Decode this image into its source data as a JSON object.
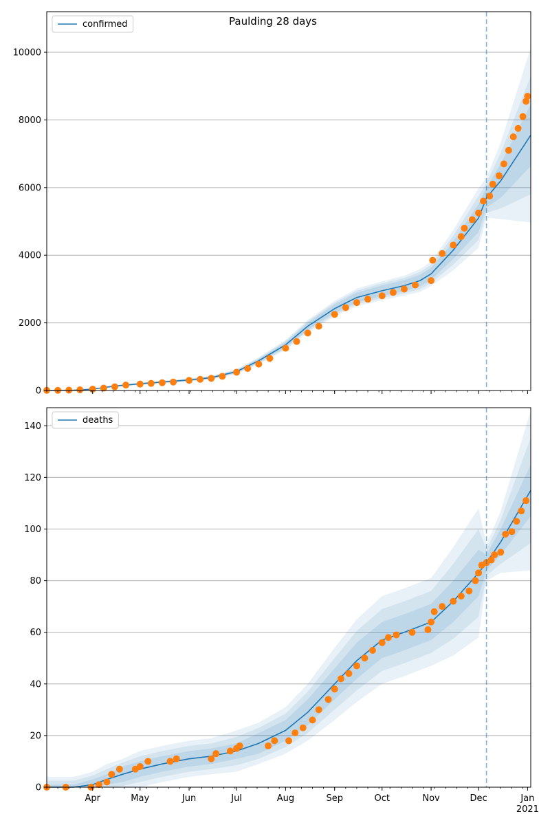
{
  "figure": {
    "title": "Paulding 28 days"
  },
  "colors": {
    "line": "#1f77b4",
    "points": "#ff7f0e",
    "band": "#1f77b4",
    "grid": "#b0b0b0",
    "vline": "#1f77b4"
  },
  "x_axis": {
    "month_ticks": [
      "Apr",
      "May",
      "Jun",
      "Jul",
      "Aug",
      "Sep",
      "Oct",
      "Nov",
      "Dec",
      "Jan"
    ],
    "year_label": "2021"
  },
  "chart_data": [
    {
      "type": "line",
      "legend": "confirmed",
      "legend_position": "top-left",
      "grid": "horizontal",
      "ylim": [
        0,
        11200
      ],
      "yticks": [
        0,
        2000,
        4000,
        6000,
        8000,
        10000
      ],
      "xlim": [
        "2020-03-03",
        "2021-01-03"
      ],
      "forecast_start": "2020-12-06",
      "model_x": [
        "2020-03-03",
        "2020-03-20",
        "2020-04-01",
        "2020-04-15",
        "2020-05-01",
        "2020-05-15",
        "2020-06-01",
        "2020-06-15",
        "2020-07-01",
        "2020-07-15",
        "2020-08-01",
        "2020-08-15",
        "2020-09-01",
        "2020-09-15",
        "2020-10-01",
        "2020-10-15",
        "2020-10-25",
        "2020-11-01",
        "2020-11-15",
        "2020-12-01",
        "2020-12-06",
        "2020-12-15",
        "2021-01-03"
      ],
      "model_y": [
        0,
        10,
        40,
        130,
        200,
        250,
        310,
        380,
        560,
        880,
        1350,
        1900,
        2420,
        2750,
        2950,
        3100,
        3250,
        3450,
        4150,
        5100,
        5700,
        6200,
        7550
      ],
      "band_inner_frac": [
        0.04,
        0.04,
        0.04,
        0.05,
        0.05,
        0.05,
        0.05,
        0.05,
        0.05,
        0.05,
        0.05,
        0.05,
        0.05,
        0.05,
        0.05,
        0.05,
        0.05,
        0.05,
        0.06,
        0.08,
        0.05,
        0.08,
        0.12
      ],
      "band_outer_frac": [
        0.08,
        0.08,
        0.08,
        0.1,
        0.1,
        0.1,
        0.1,
        0.1,
        0.1,
        0.1,
        0.1,
        0.09,
        0.09,
        0.09,
        0.09,
        0.09,
        0.1,
        0.1,
        0.14,
        0.17,
        0.1,
        0.18,
        0.34
      ],
      "observed": [
        [
          "2020-03-03",
          5
        ],
        [
          "2020-03-10",
          5
        ],
        [
          "2020-03-17",
          10
        ],
        [
          "2020-03-24",
          20
        ],
        [
          "2020-04-01",
          40
        ],
        [
          "2020-04-08",
          70
        ],
        [
          "2020-04-15",
          110
        ],
        [
          "2020-04-22",
          160
        ],
        [
          "2020-05-01",
          190
        ],
        [
          "2020-05-08",
          210
        ],
        [
          "2020-05-15",
          230
        ],
        [
          "2020-05-22",
          250
        ],
        [
          "2020-06-01",
          300
        ],
        [
          "2020-06-08",
          330
        ],
        [
          "2020-06-15",
          360
        ],
        [
          "2020-06-22",
          420
        ],
        [
          "2020-07-01",
          540
        ],
        [
          "2020-07-08",
          650
        ],
        [
          "2020-07-15",
          780
        ],
        [
          "2020-07-22",
          950
        ],
        [
          "2020-08-01",
          1250
        ],
        [
          "2020-08-08",
          1450
        ],
        [
          "2020-08-15",
          1700
        ],
        [
          "2020-08-22",
          1900
        ],
        [
          "2020-09-01",
          2250
        ],
        [
          "2020-09-08",
          2450
        ],
        [
          "2020-09-15",
          2600
        ],
        [
          "2020-09-22",
          2700
        ],
        [
          "2020-10-01",
          2800
        ],
        [
          "2020-10-08",
          2900
        ],
        [
          "2020-10-15",
          3000
        ],
        [
          "2020-10-22",
          3120
        ],
        [
          "2020-11-01",
          3250
        ],
        [
          "2020-11-02",
          3850
        ],
        [
          "2020-11-08",
          4050
        ],
        [
          "2020-11-15",
          4300
        ],
        [
          "2020-11-20",
          4550
        ],
        [
          "2020-11-22",
          4800
        ],
        [
          "2020-11-27",
          5050
        ],
        [
          "2020-12-01",
          5250
        ],
        [
          "2020-12-04",
          5600
        ],
        [
          "2020-12-08",
          5750
        ],
        [
          "2020-12-10",
          6100
        ],
        [
          "2020-12-14",
          6350
        ],
        [
          "2020-12-17",
          6700
        ],
        [
          "2020-12-20",
          7100
        ],
        [
          "2020-12-23",
          7500
        ],
        [
          "2020-12-26",
          7750
        ],
        [
          "2020-12-29",
          8100
        ],
        [
          "2020-12-31",
          8550
        ],
        [
          "2021-01-01",
          8700
        ]
      ]
    },
    {
      "type": "line",
      "legend": "deaths",
      "legend_position": "top-left",
      "grid": "horizontal",
      "ylim": [
        0,
        147
      ],
      "yticks": [
        0,
        20,
        40,
        60,
        80,
        100,
        120,
        140
      ],
      "xlim": [
        "2020-03-03",
        "2021-01-03"
      ],
      "forecast_start": "2020-12-06",
      "model_x": [
        "2020-03-03",
        "2020-03-20",
        "2020-04-01",
        "2020-04-10",
        "2020-04-20",
        "2020-05-01",
        "2020-05-15",
        "2020-06-01",
        "2020-06-15",
        "2020-07-01",
        "2020-07-15",
        "2020-08-01",
        "2020-08-15",
        "2020-09-01",
        "2020-09-15",
        "2020-10-01",
        "2020-10-15",
        "2020-11-01",
        "2020-11-15",
        "2020-12-01",
        "2020-12-06",
        "2020-12-15",
        "2021-01-03"
      ],
      "model_y": [
        0,
        0,
        1,
        3,
        5,
        7,
        9,
        11,
        12,
        14,
        17,
        22,
        29,
        40,
        49,
        57,
        60,
        64,
        72,
        83,
        87,
        95,
        115
      ],
      "band_inner_abs": [
        1,
        1,
        2,
        2,
        3,
        3,
        3,
        3,
        3,
        3,
        4,
        4,
        5,
        6,
        7,
        7,
        7,
        7,
        8,
        9,
        3,
        5,
        10
      ],
      "band_outer_abs": [
        4,
        4,
        5,
        6,
        6,
        7,
        7,
        7,
        7,
        8,
        8,
        9,
        11,
        14,
        16,
        17,
        17,
        17,
        21,
        25,
        7,
        12,
        31
      ],
      "observed": [
        [
          "2020-03-03",
          0
        ],
        [
          "2020-03-15",
          0
        ],
        [
          "2020-03-31",
          0
        ],
        [
          "2020-04-05",
          1
        ],
        [
          "2020-04-10",
          2
        ],
        [
          "2020-04-13",
          5
        ],
        [
          "2020-04-18",
          7
        ],
        [
          "2020-04-28",
          7
        ],
        [
          "2020-05-01",
          8
        ],
        [
          "2020-05-06",
          10
        ],
        [
          "2020-05-20",
          10
        ],
        [
          "2020-05-24",
          11
        ],
        [
          "2020-06-15",
          11
        ],
        [
          "2020-06-18",
          13
        ],
        [
          "2020-06-27",
          14
        ],
        [
          "2020-07-01",
          15
        ],
        [
          "2020-07-03",
          16
        ],
        [
          "2020-07-21",
          16
        ],
        [
          "2020-07-25",
          18
        ],
        [
          "2020-08-03",
          18
        ],
        [
          "2020-08-07",
          21
        ],
        [
          "2020-08-12",
          23
        ],
        [
          "2020-08-18",
          26
        ],
        [
          "2020-08-22",
          30
        ],
        [
          "2020-08-28",
          34
        ],
        [
          "2020-09-01",
          38
        ],
        [
          "2020-09-05",
          42
        ],
        [
          "2020-09-10",
          44
        ],
        [
          "2020-09-15",
          47
        ],
        [
          "2020-09-20",
          50
        ],
        [
          "2020-09-25",
          53
        ],
        [
          "2020-10-01",
          56
        ],
        [
          "2020-10-05",
          58
        ],
        [
          "2020-10-10",
          59
        ],
        [
          "2020-10-20",
          60
        ],
        [
          "2020-10-30",
          61
        ],
        [
          "2020-11-01",
          64
        ],
        [
          "2020-11-03",
          68
        ],
        [
          "2020-11-08",
          70
        ],
        [
          "2020-11-15",
          72
        ],
        [
          "2020-11-20",
          74
        ],
        [
          "2020-11-25",
          76
        ],
        [
          "2020-11-29",
          80
        ],
        [
          "2020-12-01",
          83
        ],
        [
          "2020-12-03",
          86
        ],
        [
          "2020-12-06",
          87
        ],
        [
          "2020-12-09",
          88
        ],
        [
          "2020-12-11",
          90
        ],
        [
          "2020-12-15",
          91
        ],
        [
          "2020-12-18",
          98
        ],
        [
          "2020-12-22",
          99
        ],
        [
          "2020-12-25",
          103
        ],
        [
          "2020-12-28",
          107
        ],
        [
          "2020-12-31",
          111
        ]
      ]
    }
  ]
}
